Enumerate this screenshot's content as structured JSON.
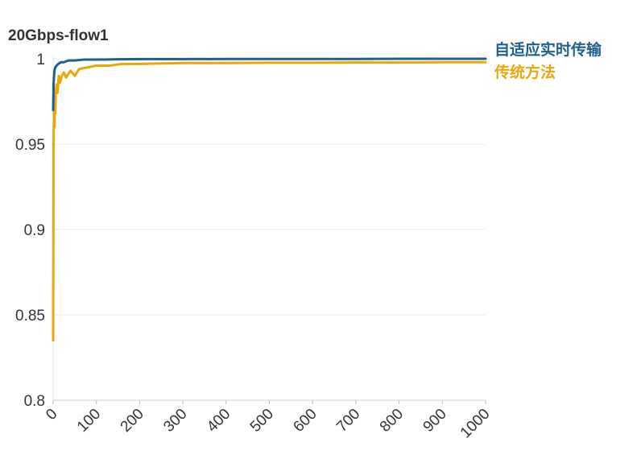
{
  "chart_data": {
    "type": "line",
    "title": "20Gbps-flow1",
    "xlabel": "",
    "ylabel": "",
    "xlim": [
      0,
      1000
    ],
    "ylim": [
      0.8,
      1.0
    ],
    "x_ticks": [
      0,
      100,
      200,
      300,
      400,
      500,
      600,
      700,
      800,
      900,
      1000
    ],
    "x_tick_labels": [
      "0",
      "100",
      "200",
      "300",
      "400",
      "500",
      "600",
      "700",
      "800",
      "900",
      "1000"
    ],
    "y_ticks": [
      0.8,
      0.85,
      0.9,
      0.95,
      1.0
    ],
    "y_tick_labels": [
      "0.8",
      "0.85",
      "0.9",
      "0.95",
      "1"
    ],
    "grid": "horizontal",
    "legend_position": "right, at line ends",
    "series": [
      {
        "name": "自适应实时传输",
        "color": "#1f5f8b",
        "x": [
          0,
          1,
          2,
          3,
          5,
          8,
          12,
          18,
          25,
          35,
          50,
          70,
          100,
          150,
          200,
          300,
          400,
          500,
          600,
          700,
          800,
          900,
          1000
        ],
        "y": [
          0.97,
          0.985,
          0.99,
          0.993,
          0.995,
          0.996,
          0.997,
          0.998,
          0.998,
          0.999,
          0.999,
          0.9995,
          0.9995,
          0.9997,
          0.9998,
          0.9998,
          0.9999,
          0.9999,
          0.9999,
          0.9999,
          1.0,
          1.0,
          1.0
        ]
      },
      {
        "name": "传统方法",
        "color": "#e8a80c",
        "x": [
          0,
          1,
          2,
          3,
          4,
          5,
          6,
          8,
          10,
          13,
          16,
          20,
          25,
          30,
          40,
          50,
          60,
          80,
          100,
          130,
          160,
          200,
          300,
          400,
          500,
          600,
          700,
          800,
          900,
          1000
        ],
        "y": [
          0.835,
          0.95,
          0.97,
          0.96,
          0.975,
          0.968,
          0.98,
          0.985,
          0.98,
          0.99,
          0.986,
          0.99,
          0.992,
          0.989,
          0.993,
          0.99,
          0.994,
          0.995,
          0.996,
          0.996,
          0.997,
          0.997,
          0.9975,
          0.9975,
          0.9977,
          0.9977,
          0.9978,
          0.9978,
          0.998,
          0.998
        ]
      }
    ]
  }
}
